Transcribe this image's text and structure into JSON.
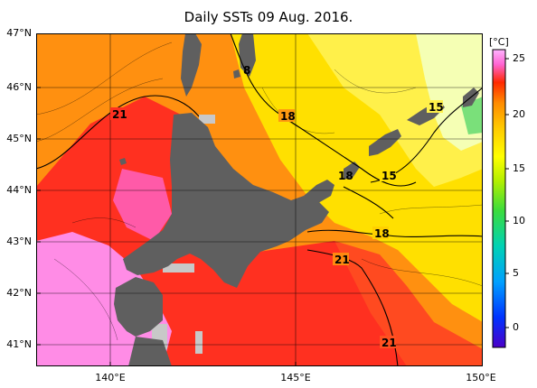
{
  "title": "Daily SSTs 09 Aug. 2016.",
  "lat_labels": [
    "47°N",
    "46°N",
    "45°N",
    "44°N",
    "43°N",
    "42°N",
    "41°N"
  ],
  "lon_labels": [
    "140°E",
    "145°E",
    "150°E"
  ],
  "colorbar": {
    "unit": "[°C]",
    "ticks": [
      "25",
      "20",
      "15",
      "10",
      "5",
      "0"
    ],
    "colors": [
      "#4b00c8",
      "#0050ff",
      "#00b4ff",
      "#00d28c",
      "#46dc46",
      "#b4f000",
      "#ffff00",
      "#ffc800",
      "#ff8c00",
      "#ff2800",
      "#ff64d2",
      "#ffb4ff"
    ]
  },
  "contour_labels": [
    "21",
    "18",
    "8",
    "15",
    "18",
    "15",
    "18",
    "21",
    "21"
  ],
  "map_colors": {
    "land": "#5f5f5f",
    "missing": "#c8c8c8",
    "sst_warm_pink": "#ff8ce6",
    "sst_red": "#ff3020",
    "sst_orange": "#ff9010",
    "sst_yellow": "#ffe000",
    "sst_pale": "#f5ffb4"
  }
}
